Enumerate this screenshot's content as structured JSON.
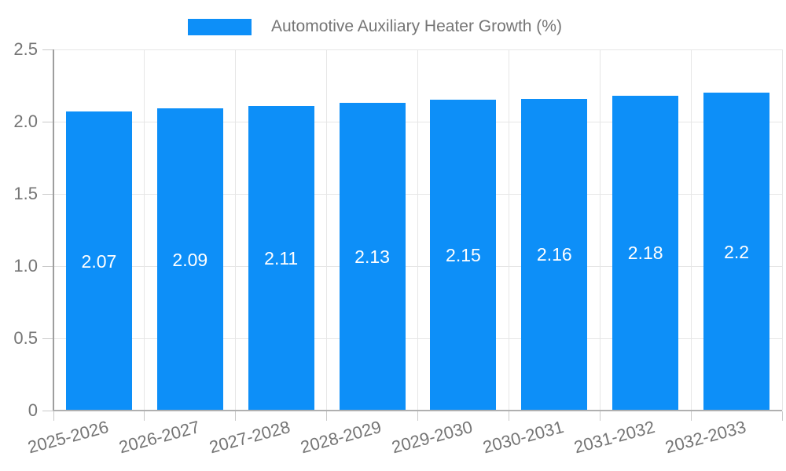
{
  "legend": {
    "position": "top",
    "label": "Automotive Auxiliary Heater Growth (%)"
  },
  "colors": {
    "bar": "#0d8ff8",
    "grid": "#e6e6e6",
    "axis_y": "#9e9e9e",
    "axis_x": "#b0b0b0",
    "tick": "#c9c9c9",
    "label": "#757575",
    "bar_label": "#ffffff",
    "background": "#ffffff"
  },
  "chart_data": {
    "type": "bar",
    "title": "Automotive Auxiliary Heater Growth (%)",
    "xlabel": "",
    "ylabel": "",
    "categories": [
      "2025-2026",
      "2026-2027",
      "2027-2028",
      "2028-2029",
      "2029-2030",
      "2030-2031",
      "2031-2032",
      "2032-2033"
    ],
    "series": [
      {
        "name": "Automotive Auxiliary Heater Growth (%)",
        "values": [
          2.07,
          2.09,
          2.11,
          2.13,
          2.15,
          2.16,
          2.18,
          2.2
        ],
        "labels": [
          "2.07",
          "2.09",
          "2.11",
          "2.13",
          "2.15",
          "2.16",
          "2.18",
          "2.2"
        ]
      }
    ],
    "legend": {
      "position": "top",
      "entries": [
        {
          "label": "Automotive Auxiliary Heater Growth (%)",
          "color": "#0d8ff8"
        }
      ]
    },
    "ylim": [
      0,
      2.5
    ],
    "y_ticks": [
      {
        "value": 0,
        "label": "0"
      },
      {
        "value": 0.5,
        "label": "0.5"
      },
      {
        "value": 1,
        "label": "1.0"
      },
      {
        "value": 1.5,
        "label": "1.5"
      },
      {
        "value": 2,
        "label": "2.0"
      },
      {
        "value": 2.5,
        "label": "2.5"
      }
    ],
    "grid": true,
    "x_tick_rotation_deg": -15,
    "value_labels_inside_bars": true
  }
}
